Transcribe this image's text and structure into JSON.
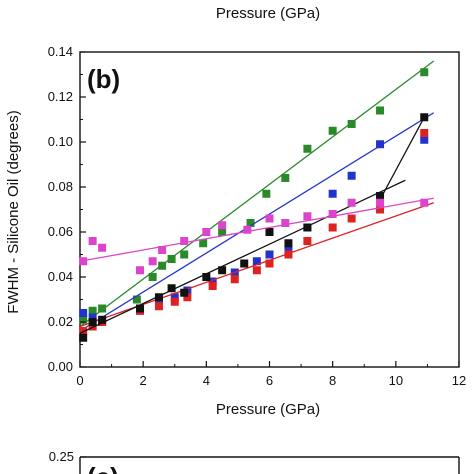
{
  "top_fragment": {
    "xlabel": "Pressure (GPa)"
  },
  "bottom_fragment": {
    "panel_label": "(c)",
    "y_tick": "0.25"
  },
  "chart_data": {
    "type": "scatter",
    "panel_label": "(b)",
    "title": "",
    "xlabel": "Pressure (GPa)",
    "ylabel": "FWHM - Silicone Oil (degrees)",
    "xlim": [
      0,
      12
    ],
    "ylim": [
      0,
      0.14
    ],
    "x_ticks": [
      "0",
      "2",
      "4",
      "6",
      "8",
      "10",
      "12"
    ],
    "y_ticks": [
      "0.00",
      "0.02",
      "0.04",
      "0.06",
      "0.08",
      "0.10",
      "0.12",
      "0.14"
    ],
    "grid": false,
    "legend": "none",
    "series": [
      {
        "color": "#2a8a2a",
        "points": [
          [
            0.1,
            0.021
          ],
          [
            0.4,
            0.025
          ],
          [
            0.7,
            0.026
          ],
          [
            1.8,
            0.03
          ],
          [
            2.3,
            0.04
          ],
          [
            2.6,
            0.045
          ],
          [
            2.9,
            0.048
          ],
          [
            3.3,
            0.05
          ],
          [
            3.9,
            0.055
          ],
          [
            4.5,
            0.06
          ],
          [
            5.4,
            0.064
          ],
          [
            5.9,
            0.077
          ],
          [
            6.5,
            0.084
          ],
          [
            7.2,
            0.097
          ],
          [
            8.0,
            0.105
          ],
          [
            8.6,
            0.108
          ],
          [
            9.5,
            0.114
          ],
          [
            10.9,
            0.131
          ]
        ],
        "fit": [
          [
            0,
            0.018
          ],
          [
            11.2,
            0.136
          ]
        ]
      },
      {
        "color": "#2233cc",
        "points": [
          [
            0.1,
            0.024
          ],
          [
            0.4,
            0.022
          ],
          [
            0.7,
            0.02
          ],
          [
            1.9,
            0.025
          ],
          [
            2.5,
            0.03
          ],
          [
            3.0,
            0.031
          ],
          [
            3.4,
            0.034
          ],
          [
            4.2,
            0.038
          ],
          [
            4.9,
            0.042
          ],
          [
            5.6,
            0.047
          ],
          [
            6.0,
            0.05
          ],
          [
            6.6,
            0.052
          ],
          [
            7.2,
            0.062
          ],
          [
            8.0,
            0.077
          ],
          [
            8.6,
            0.085
          ],
          [
            9.5,
            0.099
          ],
          [
            10.9,
            0.101
          ]
        ],
        "fit": [
          [
            0,
            0.016
          ],
          [
            11.2,
            0.113
          ]
        ]
      },
      {
        "color": "#dd2222",
        "points": [
          [
            0.1,
            0.016
          ],
          [
            0.4,
            0.018
          ],
          [
            0.7,
            0.02
          ],
          [
            1.9,
            0.025
          ],
          [
            2.5,
            0.027
          ],
          [
            3.0,
            0.029
          ],
          [
            3.4,
            0.031
          ],
          [
            4.2,
            0.036
          ],
          [
            4.9,
            0.039
          ],
          [
            5.6,
            0.043
          ],
          [
            6.0,
            0.046
          ],
          [
            6.6,
            0.05
          ],
          [
            7.2,
            0.056
          ],
          [
            8.0,
            0.062
          ],
          [
            8.6,
            0.066
          ],
          [
            9.5,
            0.07
          ],
          [
            10.9,
            0.104
          ]
        ],
        "fit": [
          [
            0,
            0.018
          ],
          [
            11.2,
            0.073
          ]
        ]
      },
      {
        "color": "#111111",
        "points": [
          [
            0.1,
            0.013
          ],
          [
            0.4,
            0.02
          ],
          [
            0.7,
            0.021
          ],
          [
            1.9,
            0.026
          ],
          [
            2.5,
            0.031
          ],
          [
            2.9,
            0.035
          ],
          [
            3.3,
            0.033
          ],
          [
            4.0,
            0.04
          ],
          [
            4.5,
            0.043
          ],
          [
            5.2,
            0.046
          ],
          [
            6.0,
            0.06
          ],
          [
            6.6,
            0.055
          ],
          [
            7.2,
            0.062
          ],
          [
            9.5,
            0.076
          ],
          [
            10.9,
            0.111
          ]
        ],
        "fit": [
          [
            0,
            0.015
          ],
          [
            10.3,
            0.083
          ]
        ]
      },
      {
        "color": "#dd44cc",
        "points": [
          [
            0.1,
            0.047
          ],
          [
            0.4,
            0.056
          ],
          [
            0.7,
            0.053
          ],
          [
            1.9,
            0.043
          ],
          [
            2.3,
            0.047
          ],
          [
            2.6,
            0.052
          ],
          [
            3.3,
            0.056
          ],
          [
            4.0,
            0.06
          ],
          [
            4.5,
            0.063
          ],
          [
            5.3,
            0.061
          ],
          [
            6.0,
            0.066
          ],
          [
            6.5,
            0.064
          ],
          [
            7.2,
            0.067
          ],
          [
            8.0,
            0.068
          ],
          [
            8.6,
            0.073
          ],
          [
            9.5,
            0.073
          ],
          [
            10.9,
            0.073
          ]
        ],
        "fit": [
          [
            0,
            0.047
          ],
          [
            11.2,
            0.075
          ]
        ]
      }
    ],
    "connector": {
      "color": "#111111",
      "points": [
        [
          9.6,
          0.077
        ],
        [
          10.9,
          0.111
        ]
      ]
    }
  }
}
